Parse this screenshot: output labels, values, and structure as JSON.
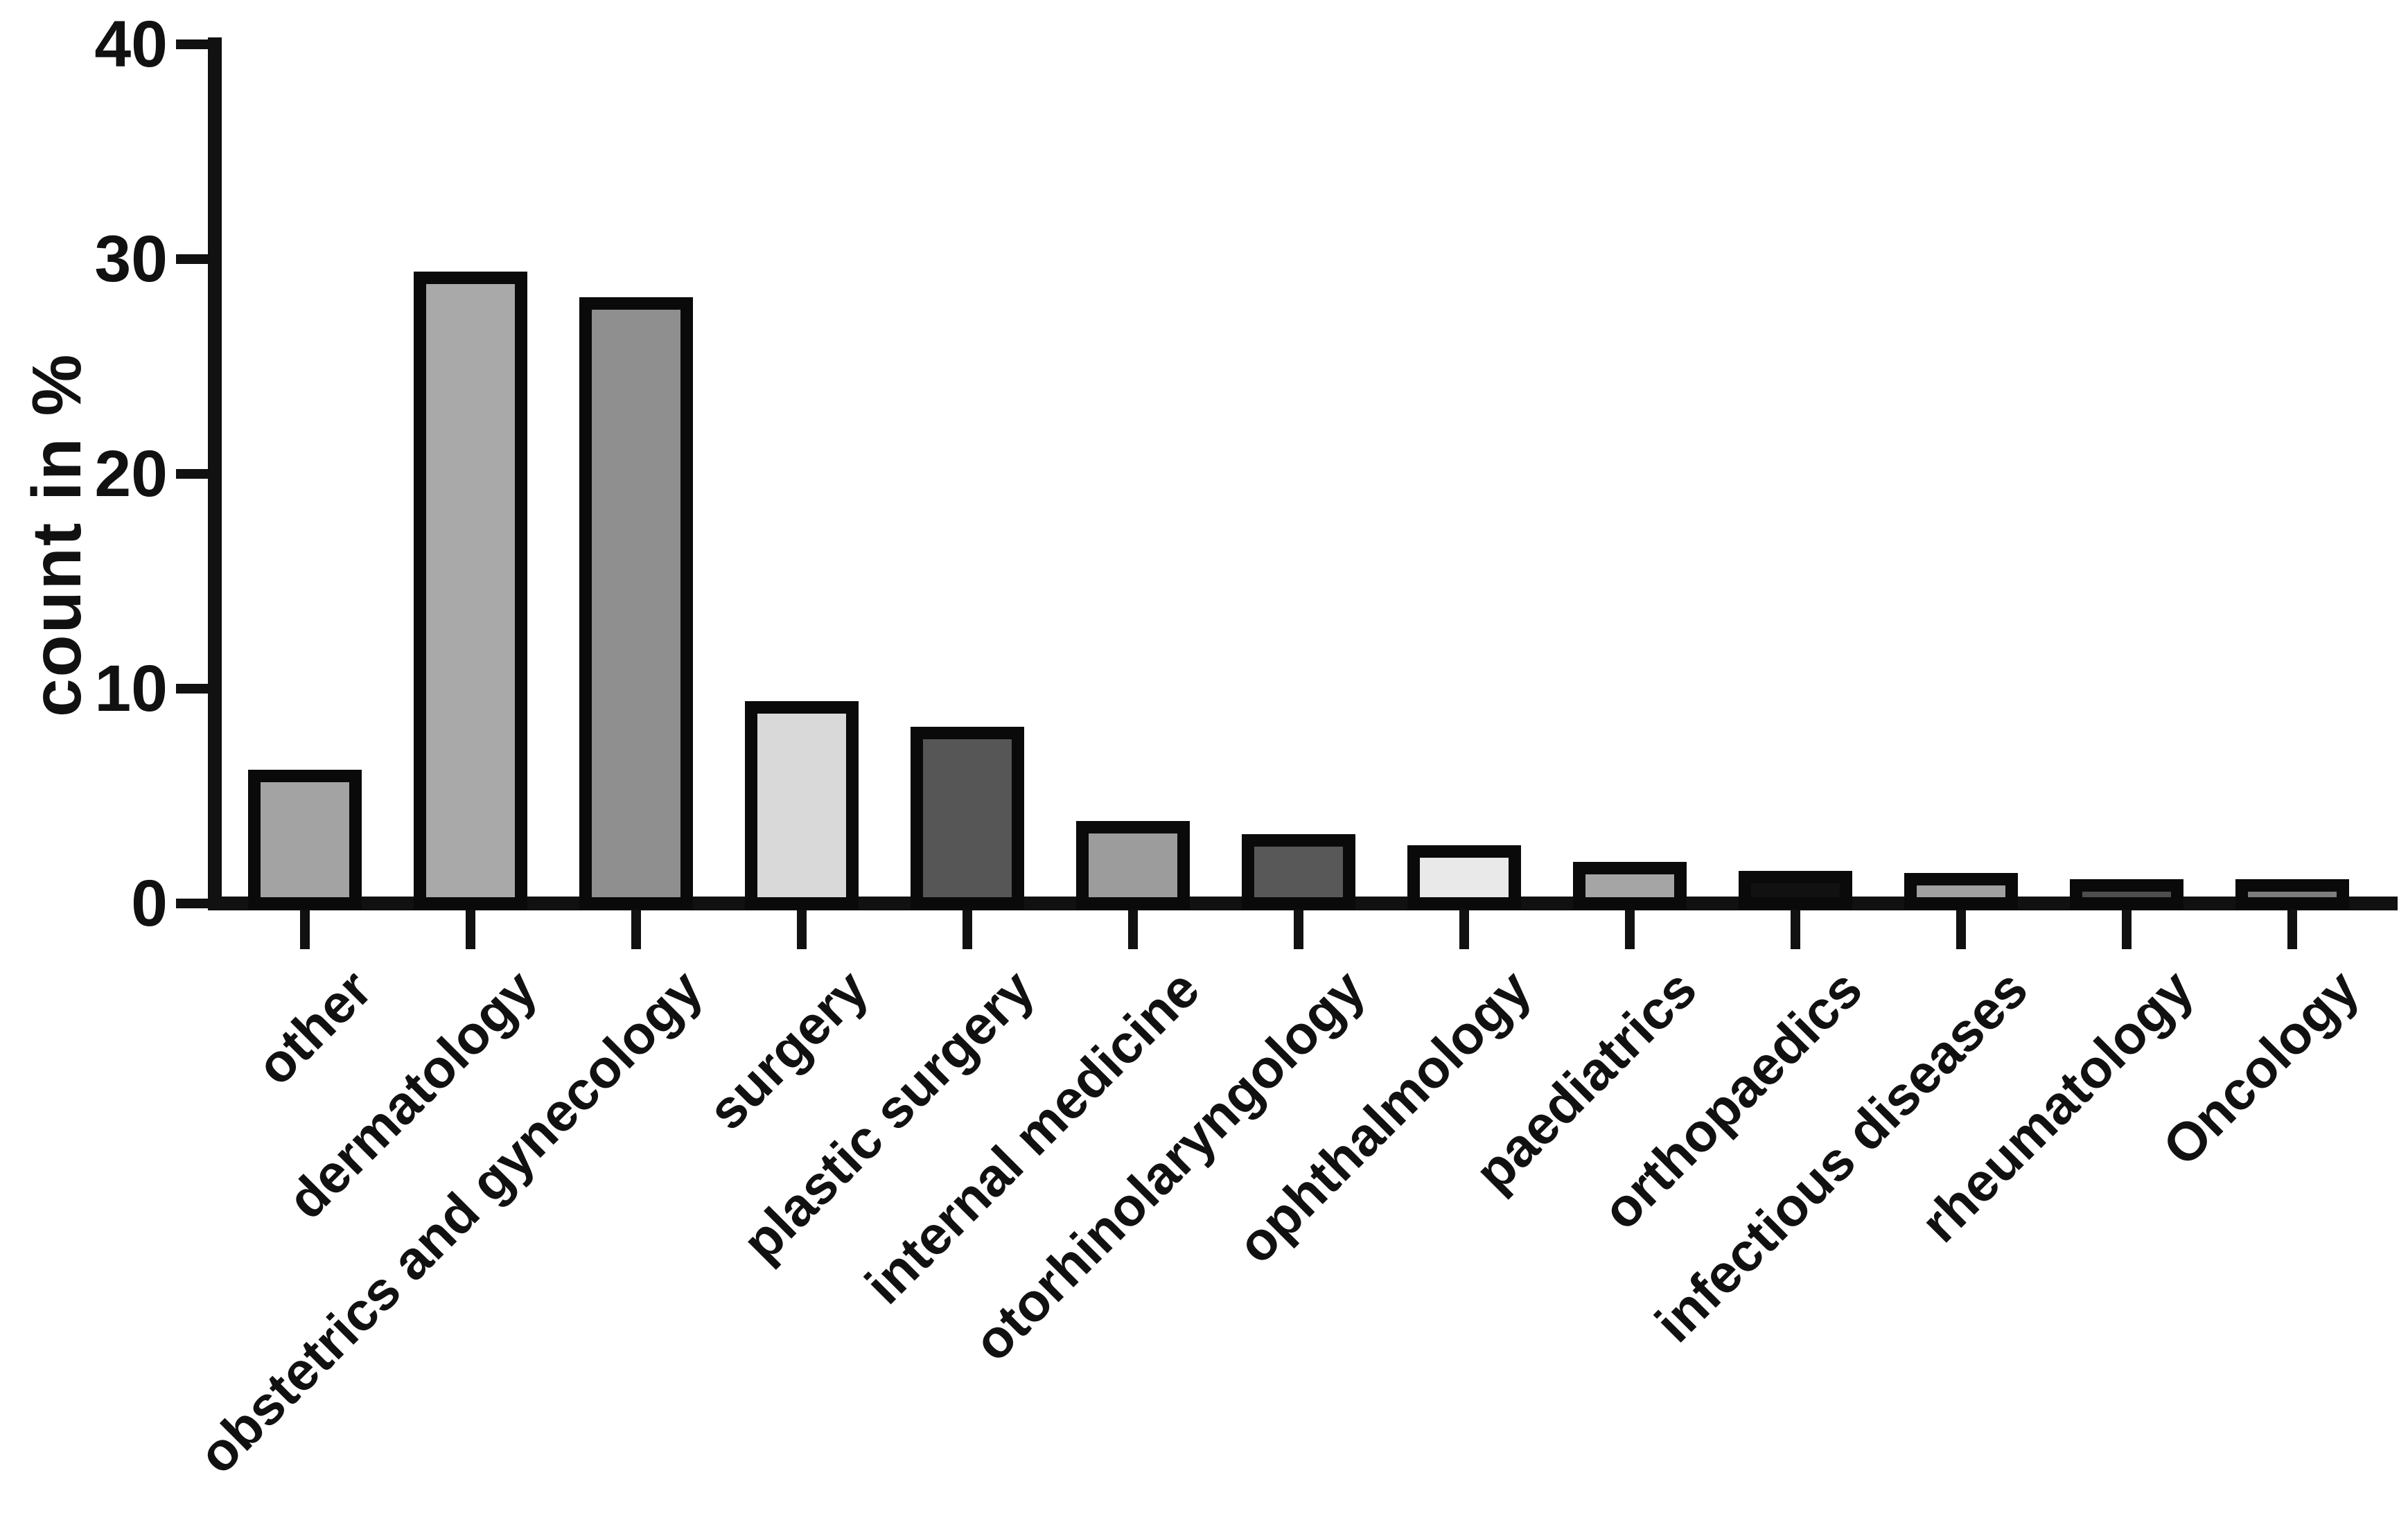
{
  "figure": {
    "background_color": "#ffffff",
    "axis_color": "#111111",
    "bar_border_color": "#0a0a0a"
  },
  "chart_data": {
    "type": "bar",
    "title": "",
    "xlabel": "",
    "ylabel": "count in %",
    "ylim": [
      0,
      40
    ],
    "yticks": [
      0,
      10,
      20,
      30,
      40
    ],
    "grid": false,
    "legend": "none",
    "categories": [
      "other",
      "dermatology",
      "obstetrics and gynecology",
      "surgery",
      "plastic surgery",
      "internal medicine",
      "otorhinolaryngology",
      "ophthalmology",
      "paediatrics",
      "orthopaedics",
      "infectious diseases",
      "rheumatology",
      "Oncology"
    ],
    "values": [
      6.0,
      29.2,
      28.0,
      9.2,
      8.0,
      3.6,
      3.0,
      2.5,
      1.7,
      1.3,
      1.2,
      0.9,
      0.9
    ],
    "bar_fill_colors": [
      "#a3a3a3",
      "#a9a9a9",
      "#8f8f8f",
      "#d9d9d9",
      "#565656",
      "#9c9c9c",
      "#585858",
      "#e9e9e9",
      "#a5a5a5",
      "#111111",
      "#a0a0a0",
      "#4e4e4e",
      "#7d7d7d"
    ]
  }
}
